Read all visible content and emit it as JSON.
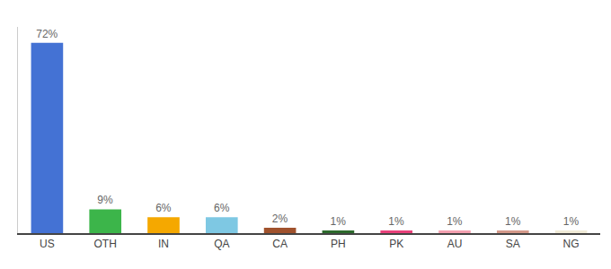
{
  "chart_data": {
    "type": "bar",
    "categories": [
      "US",
      "OTH",
      "IN",
      "QA",
      "CA",
      "PH",
      "PK",
      "AU",
      "SA",
      "NG"
    ],
    "values": [
      72,
      9,
      6,
      6,
      2,
      1,
      1,
      1,
      1,
      1
    ],
    "value_labels": [
      "72%",
      "9%",
      "6%",
      "6%",
      "2%",
      "1%",
      "1%",
      "1%",
      "1%",
      "1%"
    ],
    "data_labels": true,
    "colors": [
      "#4472d4",
      "#3cb54a",
      "#f5a800",
      "#7ec8e3",
      "#a0522d",
      "#2d6a2d",
      "#e8417a",
      "#f4a0b0",
      "#d4998a",
      "#f0ead6"
    ],
    "ylim": [
      0,
      78
    ],
    "tick_labels": "x",
    "grid": false
  }
}
